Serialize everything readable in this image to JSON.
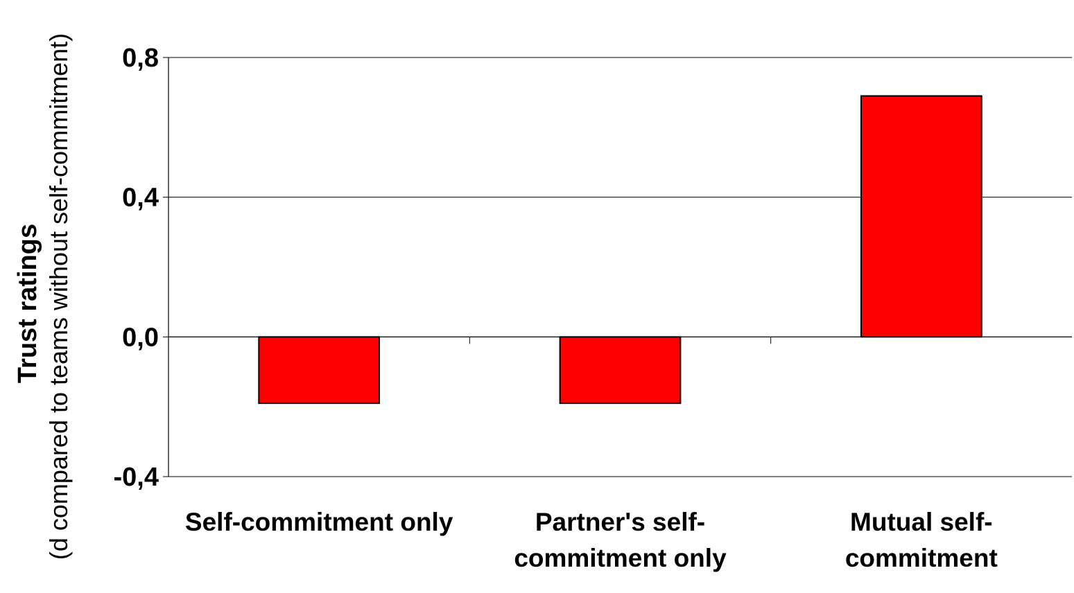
{
  "chart_data": {
    "type": "bar",
    "categories": [
      [
        "Self-commitment only"
      ],
      [
        "Partner's self-",
        "commitment only"
      ],
      [
        "Mutual self-",
        "commitment"
      ]
    ],
    "values": [
      -0.19,
      -0.19,
      0.69
    ],
    "ylabel": "Trust ratings",
    "ylabel_sub": "(d compared to teams without self-commitment)",
    "ylim": [
      -0.4,
      0.8
    ],
    "yticks": [
      -0.4,
      0.0,
      0.4,
      0.8
    ],
    "ytick_labels": [
      "-0,4",
      "0,0",
      "0,4",
      "0,8"
    ],
    "grid": true,
    "bar_color": "#ff0000",
    "bar_edge_color": "#000000"
  }
}
